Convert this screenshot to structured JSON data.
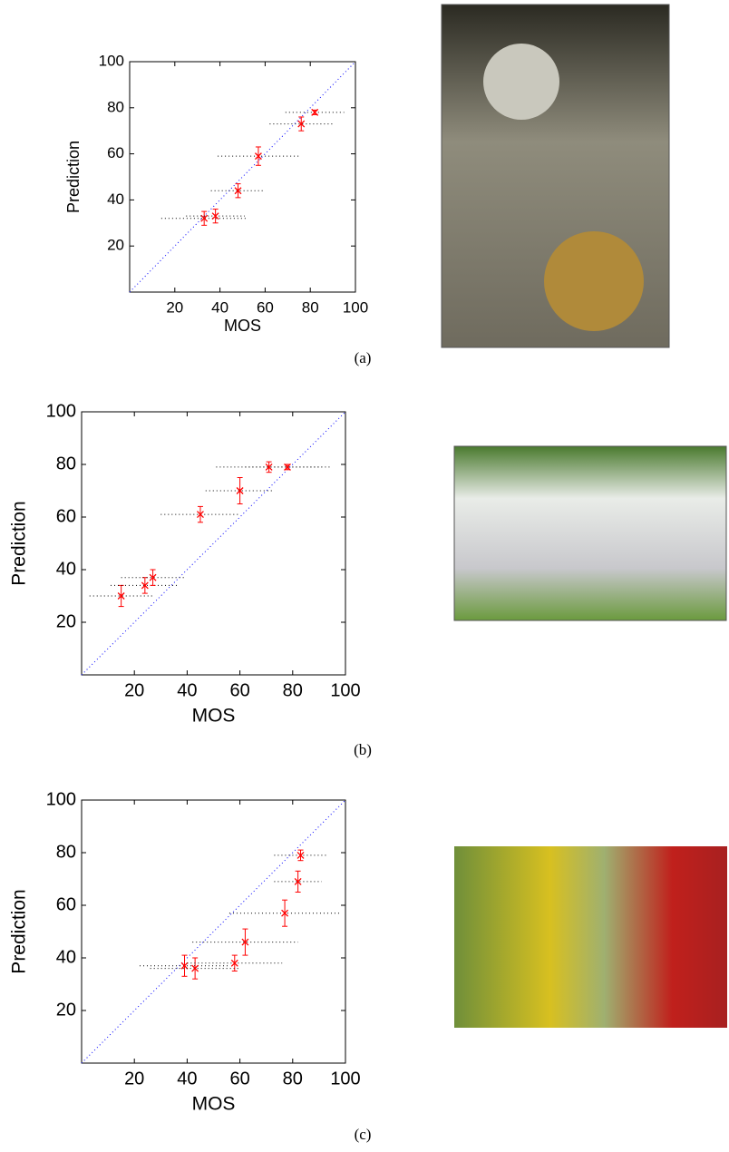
{
  "chart_data": [
    {
      "type": "scatter",
      "x_label": "MOS",
      "y_label": "Prediction",
      "caption": "(a)",
      "xlim": [
        0,
        100
      ],
      "ylim": [
        0,
        100
      ],
      "xticks": [
        20,
        40,
        60,
        80,
        100
      ],
      "yticks": [
        20,
        40,
        60,
        80,
        100
      ],
      "identity_line": true,
      "identity_color": "#0000ff",
      "series": [
        {
          "color": "#ff0000",
          "x": [
            33,
            38,
            48,
            57,
            76,
            82
          ],
          "values": [
            32,
            33,
            44,
            59,
            73,
            78
          ],
          "x_error": [
            19,
            13,
            12,
            18,
            14,
            13
          ],
          "y_error": [
            3,
            3,
            3,
            4,
            3,
            1
          ]
        }
      ]
    },
    {
      "type": "scatter",
      "x_label": "MOS",
      "y_label": "Prediction",
      "caption": "(b)",
      "xlim": [
        0,
        100
      ],
      "ylim": [
        0,
        100
      ],
      "xticks": [
        20,
        40,
        60,
        80,
        100
      ],
      "yticks": [
        20,
        40,
        60,
        80,
        100
      ],
      "identity_line": true,
      "identity_color": "#0000ff",
      "series": [
        {
          "color": "#ff0000",
          "x": [
            15,
            24,
            27,
            45,
            60,
            71,
            78
          ],
          "values": [
            30,
            34,
            37,
            61,
            70,
            79,
            79
          ],
          "x_error": [
            12,
            13,
            12,
            15,
            13,
            20,
            16
          ],
          "y_error": [
            4,
            3,
            3,
            3,
            5,
            2,
            1
          ]
        }
      ]
    },
    {
      "type": "scatter",
      "x_label": "MOS",
      "y_label": "Prediction",
      "caption": "(c)",
      "xlim": [
        0,
        100
      ],
      "ylim": [
        0,
        100
      ],
      "xticks": [
        20,
        40,
        60,
        80,
        100
      ],
      "yticks": [
        20,
        40,
        60,
        80,
        100
      ],
      "identity_line": true,
      "identity_color": "#0000ff",
      "series": [
        {
          "color": "#ff0000",
          "x": [
            39,
            43,
            58,
            62,
            77,
            82,
            83
          ],
          "values": [
            37,
            36,
            38,
            46,
            57,
            69,
            79
          ],
          "x_error": [
            17,
            17,
            18,
            20,
            21,
            9,
            10
          ],
          "y_error": [
            4,
            4,
            3,
            5,
            5,
            4,
            2
          ]
        }
      ]
    }
  ]
}
